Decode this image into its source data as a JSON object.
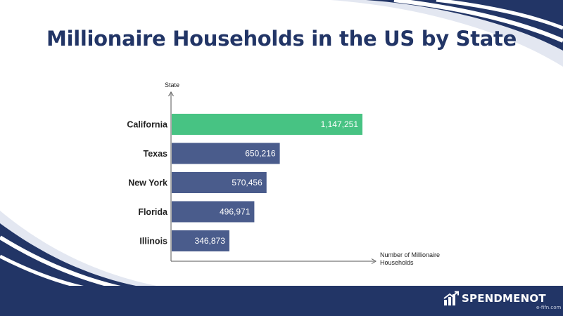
{
  "title": "Millionaire Households in the US by State",
  "brand": "SPENDMENOT",
  "watermark": "e-fifn.com",
  "colors": {
    "navy": "#223566",
    "bar": "#4a5c8c",
    "highlight": "#47c383",
    "bar_label": "#ffffff",
    "axis": "#555555"
  },
  "chart_data": {
    "type": "bar",
    "orientation": "horizontal",
    "title": "Millionaire Households in the US by State",
    "xlabel": "Number of Millionaire Households",
    "ylabel": "State",
    "categories": [
      "California",
      "Texas",
      "New York",
      "Florida",
      "Illinois"
    ],
    "values": [
      1147251,
      650216,
      570456,
      496971,
      346873
    ],
    "value_labels": [
      "1,147,251",
      "650,216",
      "570,456",
      "496,971",
      "346,873"
    ],
    "highlighted_category": "California",
    "grid": false,
    "legend": "none"
  }
}
